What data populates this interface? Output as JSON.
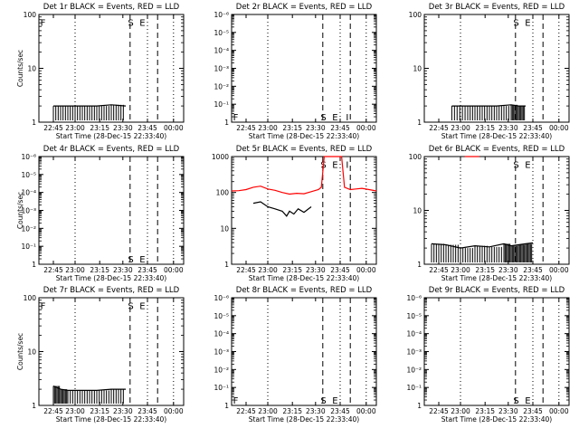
{
  "x_tick_labels": [
    "22:45",
    "23:00",
    "23:15",
    "23:30",
    "23:45",
    "00:00"
  ],
  "xlabel": "Start Time (28-Dec-15 22:33:40)",
  "ylabel": "Counts/sec",
  "marker_labels": {
    "start": "S",
    "end": "E",
    "flare": "F",
    "i": "I"
  },
  "colors": {
    "events": "#000000",
    "lld": "#ff0000",
    "axes": "#000000"
  },
  "chart_data": [
    {
      "type": "line",
      "title": "Det 1r BLACK = Events, RED = LLD",
      "yscale": "log",
      "ylim": [
        1,
        100
      ],
      "yticks": [
        "1",
        "10",
        "100"
      ],
      "show_ylabel": true,
      "markers": {
        "dotted": [
          0.25,
          0.75,
          0.93
        ],
        "dashed": [
          0.63,
          0.82
        ]
      },
      "letters": [
        {
          "t": "F",
          "x": 0.01,
          "y": 0.02
        },
        {
          "t": "S",
          "x": 0.615,
          "y": 0.02
        },
        {
          "t": "E",
          "x": 0.695,
          "y": 0.02
        }
      ],
      "series": [
        {
          "color": "black",
          "x": [
            0.1,
            0.2,
            0.3,
            0.4,
            0.5,
            0.6
          ],
          "y": [
            2.0,
            2.0,
            2.0,
            2.0,
            2.1,
            2.0
          ]
        }
      ]
    },
    {
      "type": "line",
      "title": "Det 2r BLACK = Events, RED = LLD",
      "yscale": "log",
      "yticks": [
        "1",
        "10⁻¹",
        "10⁻²",
        "10⁻³",
        "10⁻⁴",
        "10⁻⁵",
        "10⁻⁶"
      ],
      "show_ylabel": false,
      "markers": {
        "dotted": [
          0.25,
          0.75,
          0.93
        ],
        "dashed": [
          0.63,
          0.82
        ]
      },
      "letters": [
        {
          "t": "F",
          "x": 0.01,
          "y": 0.9
        },
        {
          "t": "S",
          "x": 0.615,
          "y": 0.9
        },
        {
          "t": "E",
          "x": 0.695,
          "y": 0.9
        },
        {
          "t": "I",
          "x": 0.79,
          "y": 0.9
        }
      ],
      "series": []
    },
    {
      "type": "line",
      "title": "Det 3r BLACK = Events, RED = LLD",
      "yscale": "log",
      "ylim": [
        1,
        100
      ],
      "yticks": [
        "1",
        "10",
        "100"
      ],
      "show_ylabel": false,
      "markers": {
        "dotted": [
          0.25,
          0.75,
          0.93
        ],
        "dashed": [
          0.63,
          0.82
        ]
      },
      "letters": [
        {
          "t": "S",
          "x": 0.615,
          "y": 0.02
        },
        {
          "t": "E",
          "x": 0.695,
          "y": 0.02
        }
      ],
      "series": [
        {
          "color": "black",
          "x": [
            0.19,
            0.3,
            0.4,
            0.5,
            0.6,
            0.65,
            0.7
          ],
          "y": [
            2.0,
            2.0,
            2.0,
            2.0,
            2.1,
            2.0,
            2.0
          ]
        }
      ]
    },
    {
      "type": "line",
      "title": "Det 4r BLACK = Events, RED = LLD",
      "yscale": "log",
      "yticks": [
        "1",
        "10⁻¹",
        "10⁻²",
        "10⁻³",
        "10⁻⁴",
        "10⁻⁵",
        "10⁻⁶"
      ],
      "show_ylabel": true,
      "markers": {
        "dotted": [
          0.25,
          0.75,
          0.93
        ],
        "dashed": [
          0.63,
          0.82
        ]
      },
      "letters": [
        {
          "t": "S",
          "x": 0.615,
          "y": 0.9
        },
        {
          "t": "E",
          "x": 0.695,
          "y": 0.9
        }
      ],
      "series": []
    },
    {
      "type": "line",
      "title": "Det 5r BLACK = Events, RED = LLD",
      "yscale": "log",
      "ylim": [
        1,
        1000
      ],
      "yticks": [
        "1",
        "10",
        "100",
        "1000"
      ],
      "show_ylabel": false,
      "markers": {
        "dotted": [
          0.25,
          0.75,
          0.93
        ],
        "dashed": [
          0.63,
          0.82
        ]
      },
      "letters": [
        {
          "t": "S",
          "x": 0.615,
          "y": 0.02
        },
        {
          "t": "E",
          "x": 0.695,
          "y": 0.02
        },
        {
          "t": "I",
          "x": 0.79,
          "y": 0.02
        }
      ],
      "series": [
        {
          "color": "red",
          "x": [
            0.0,
            0.05,
            0.1,
            0.15,
            0.2,
            0.25,
            0.3,
            0.35,
            0.4,
            0.45,
            0.5,
            0.55,
            0.6,
            0.62,
            0.64,
            0.66,
            0.7,
            0.72,
            0.74,
            0.76,
            0.78,
            0.82,
            0.86,
            0.9,
            0.95,
            1.0
          ],
          "y": [
            110,
            112,
            120,
            140,
            150,
            125,
            115,
            100,
            90,
            95,
            92,
            105,
            120,
            140,
            1000,
            1000,
            1000,
            1000,
            1000,
            1000,
            140,
            120,
            125,
            130,
            120,
            110
          ]
        },
        {
          "color": "black",
          "x": [
            0.15,
            0.2,
            0.25,
            0.3,
            0.35,
            0.38,
            0.4,
            0.43,
            0.46,
            0.5,
            0.55
          ],
          "y": [
            50,
            55,
            40,
            35,
            30,
            22,
            30,
            25,
            35,
            28,
            40
          ]
        }
      ]
    },
    {
      "type": "line",
      "title": "Det 6r BLACK = Events, RED = LLD",
      "yscale": "log",
      "ylim": [
        1,
        100
      ],
      "yticks": [
        "1",
        "10",
        "100"
      ],
      "show_ylabel": false,
      "markers": {
        "dotted": [
          0.25,
          0.75,
          0.93
        ],
        "dashed": [
          0.63,
          0.82
        ]
      },
      "letters": [
        {
          "t": "S",
          "x": 0.615,
          "y": 0.02
        },
        {
          "t": "E",
          "x": 0.695,
          "y": 0.02
        }
      ],
      "series": [
        {
          "color": "black",
          "x": [
            0.05,
            0.15,
            0.25,
            0.35,
            0.45,
            0.55,
            0.6,
            0.65,
            0.7,
            0.75
          ],
          "y": [
            2.4,
            2.3,
            2.0,
            2.2,
            2.1,
            2.4,
            2.2,
            2.3,
            2.4,
            2.5
          ]
        },
        {
          "color": "red",
          "x": [
            0.28,
            0.38
          ],
          "y": [
            100,
            100
          ]
        }
      ]
    },
    {
      "type": "line",
      "title": "Det 7r BLACK = Events, RED = LLD",
      "yscale": "log",
      "ylim": [
        1,
        100
      ],
      "yticks": [
        "1",
        "10",
        "100"
      ],
      "show_ylabel": true,
      "markers": {
        "dotted": [
          0.25,
          0.75,
          0.93
        ],
        "dashed": [
          0.63,
          0.82
        ]
      },
      "letters": [
        {
          "t": "F",
          "x": 0.01,
          "y": 0.02
        },
        {
          "t": "S",
          "x": 0.615,
          "y": 0.02
        },
        {
          "t": "E",
          "x": 0.695,
          "y": 0.02
        }
      ],
      "series": [
        {
          "color": "black",
          "x": [
            0.1,
            0.15,
            0.2,
            0.3,
            0.4,
            0.5,
            0.6
          ],
          "y": [
            2.3,
            2.0,
            1.9,
            1.9,
            1.9,
            2.0,
            2.0
          ]
        }
      ]
    },
    {
      "type": "line",
      "title": "Det 8r BLACK = Events, RED = LLD",
      "yscale": "log",
      "yticks": [
        "1",
        "10⁻¹",
        "10⁻²",
        "10⁻³",
        "10⁻⁴",
        "10⁻⁵",
        "10⁻⁶"
      ],
      "show_ylabel": false,
      "markers": {
        "dotted": [
          0.25,
          0.75,
          0.93
        ],
        "dashed": [
          0.63,
          0.82
        ]
      },
      "letters": [
        {
          "t": "F",
          "x": 0.01,
          "y": 0.9
        },
        {
          "t": "S",
          "x": 0.615,
          "y": 0.9
        },
        {
          "t": "E",
          "x": 0.695,
          "y": 0.9
        }
      ],
      "series": []
    },
    {
      "type": "line",
      "title": "Det 9r BLACK = Events, RED = LLD",
      "yscale": "log",
      "yticks": [
        "1",
        "10⁻¹",
        "10⁻²",
        "10⁻³",
        "10⁻⁴",
        "10⁻⁵",
        "10⁻⁶"
      ],
      "show_ylabel": false,
      "markers": {
        "dotted": [
          0.25,
          0.75,
          0.93
        ],
        "dashed": [
          0.63,
          0.82
        ]
      },
      "letters": [
        {
          "t": "S",
          "x": 0.615,
          "y": 0.9
        },
        {
          "t": "E",
          "x": 0.695,
          "y": 0.9
        }
      ],
      "series": []
    }
  ]
}
